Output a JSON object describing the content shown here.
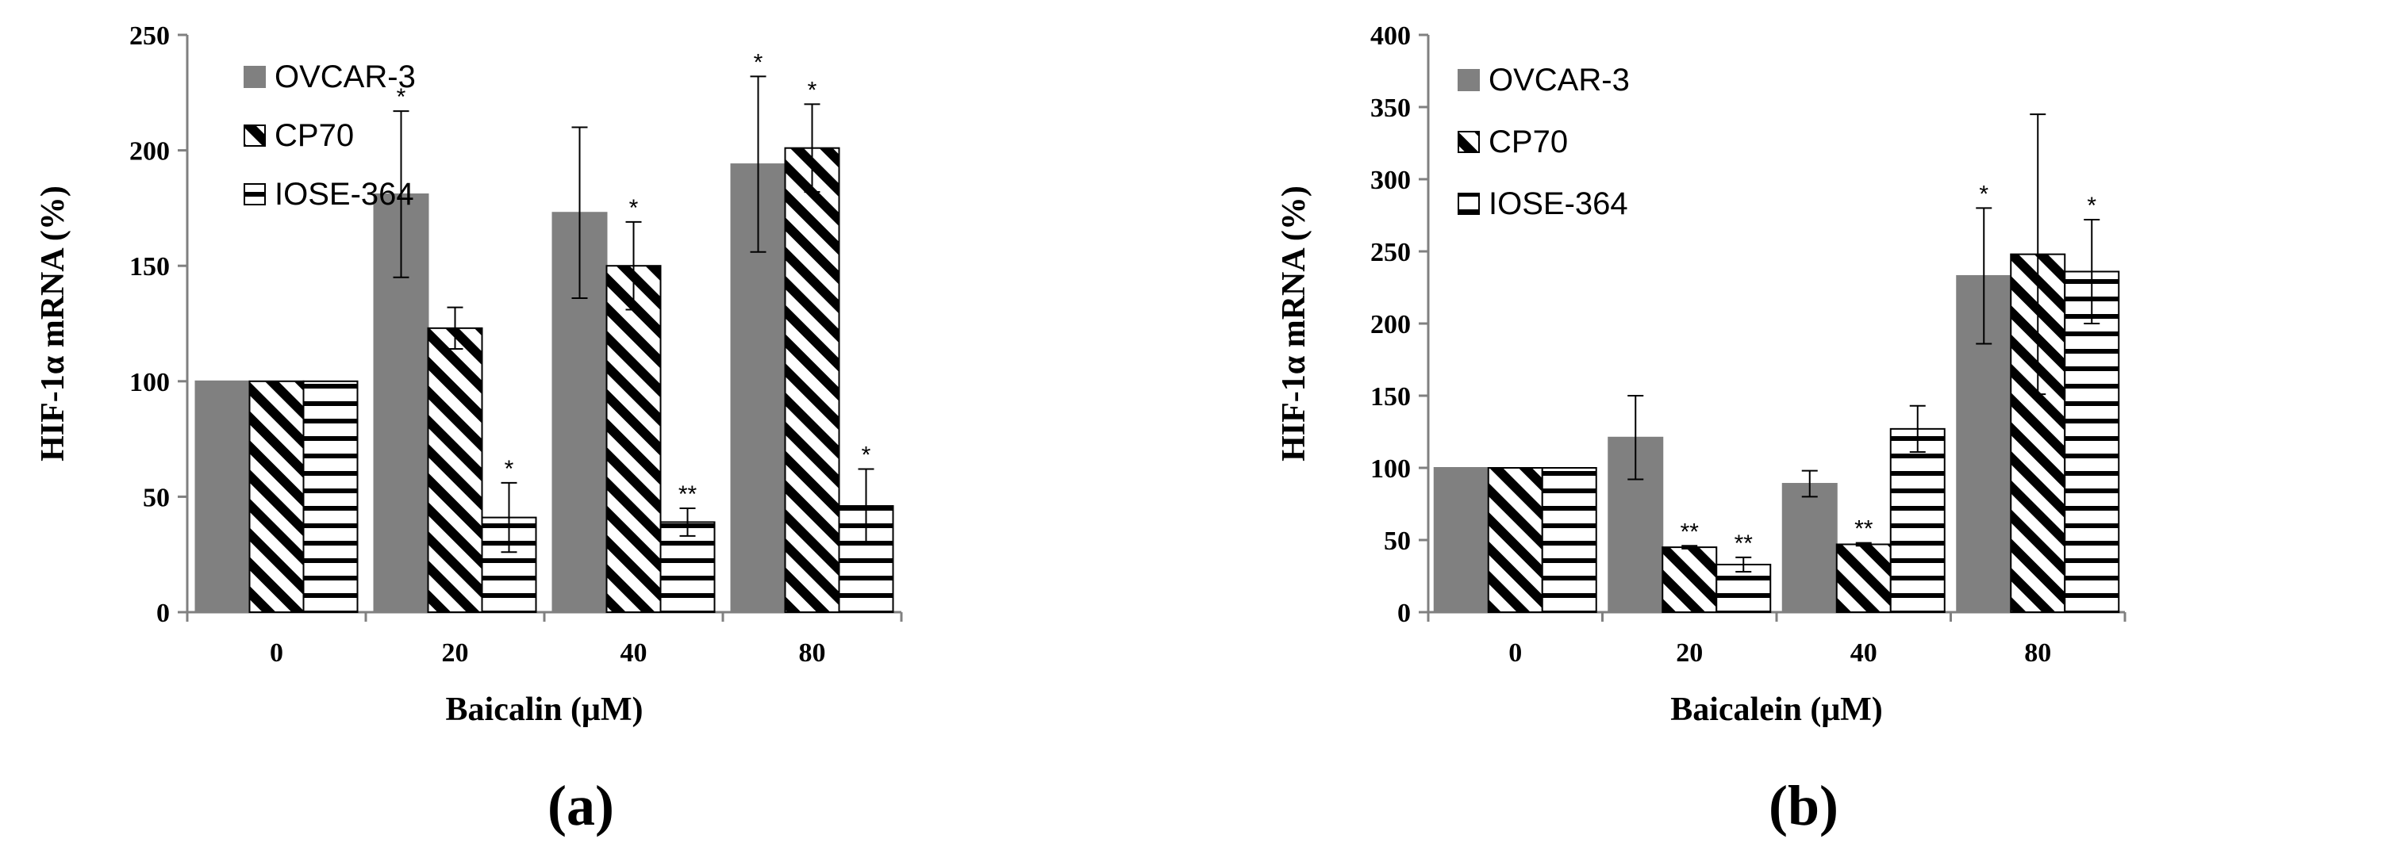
{
  "colors": {
    "ovcar": "#808080",
    "axis": "#808080",
    "stroke": "#000000",
    "background": "#ffffff"
  },
  "chart_data": [
    {
      "type": "bar",
      "panel_label": "(a)",
      "xlabel": "Baicalin (μM)",
      "ylabel": "HIF-1α mRNA (%)",
      "categories": [
        "0",
        "20",
        "40",
        "80"
      ],
      "ylim": [
        0,
        250
      ],
      "yticks": [
        0,
        50,
        100,
        150,
        200,
        250
      ],
      "legend_position": "top-left",
      "series": [
        {
          "name": "OVCAR-3",
          "pattern": "solid",
          "values": [
            100,
            181,
            173,
            194
          ],
          "errors": [
            0,
            36,
            37,
            38
          ],
          "sig": [
            "",
            "*",
            "",
            "*"
          ]
        },
        {
          "name": "CP70",
          "pattern": "diagonal",
          "values": [
            100,
            123,
            150,
            201
          ],
          "errors": [
            0,
            9,
            19,
            19
          ],
          "sig": [
            "",
            "",
            "*",
            "*"
          ]
        },
        {
          "name": "IOSE-364",
          "pattern": "horizontal",
          "values": [
            100,
            41,
            39,
            46
          ],
          "errors": [
            0,
            15,
            6,
            16
          ],
          "sig": [
            "",
            "*",
            "**",
            "*"
          ]
        }
      ]
    },
    {
      "type": "bar",
      "panel_label": "(b)",
      "xlabel": "Baicalein (μM)",
      "ylabel": "HIF-1α mRNA (%)",
      "categories": [
        "0",
        "20",
        "40",
        "80"
      ],
      "ylim": [
        0,
        400
      ],
      "yticks": [
        0,
        50,
        100,
        150,
        200,
        250,
        300,
        350,
        400
      ],
      "legend_position": "top-left",
      "series": [
        {
          "name": "OVCAR-3",
          "pattern": "solid",
          "values": [
            100,
            121,
            89,
            233
          ],
          "errors": [
            0,
            29,
            9,
            47
          ],
          "sig": [
            "",
            "",
            "",
            "*"
          ]
        },
        {
          "name": "CP70",
          "pattern": "diagonal",
          "values": [
            100,
            45,
            47,
            248
          ],
          "errors": [
            0,
            1,
            1,
            97
          ],
          "sig": [
            "",
            "**",
            "**",
            ""
          ]
        },
        {
          "name": "IOSE-364",
          "pattern": "horizontal",
          "values": [
            100,
            33,
            127,
            236
          ],
          "errors": [
            0,
            5,
            16,
            36
          ],
          "sig": [
            "",
            "**",
            "",
            "*"
          ]
        }
      ]
    }
  ]
}
